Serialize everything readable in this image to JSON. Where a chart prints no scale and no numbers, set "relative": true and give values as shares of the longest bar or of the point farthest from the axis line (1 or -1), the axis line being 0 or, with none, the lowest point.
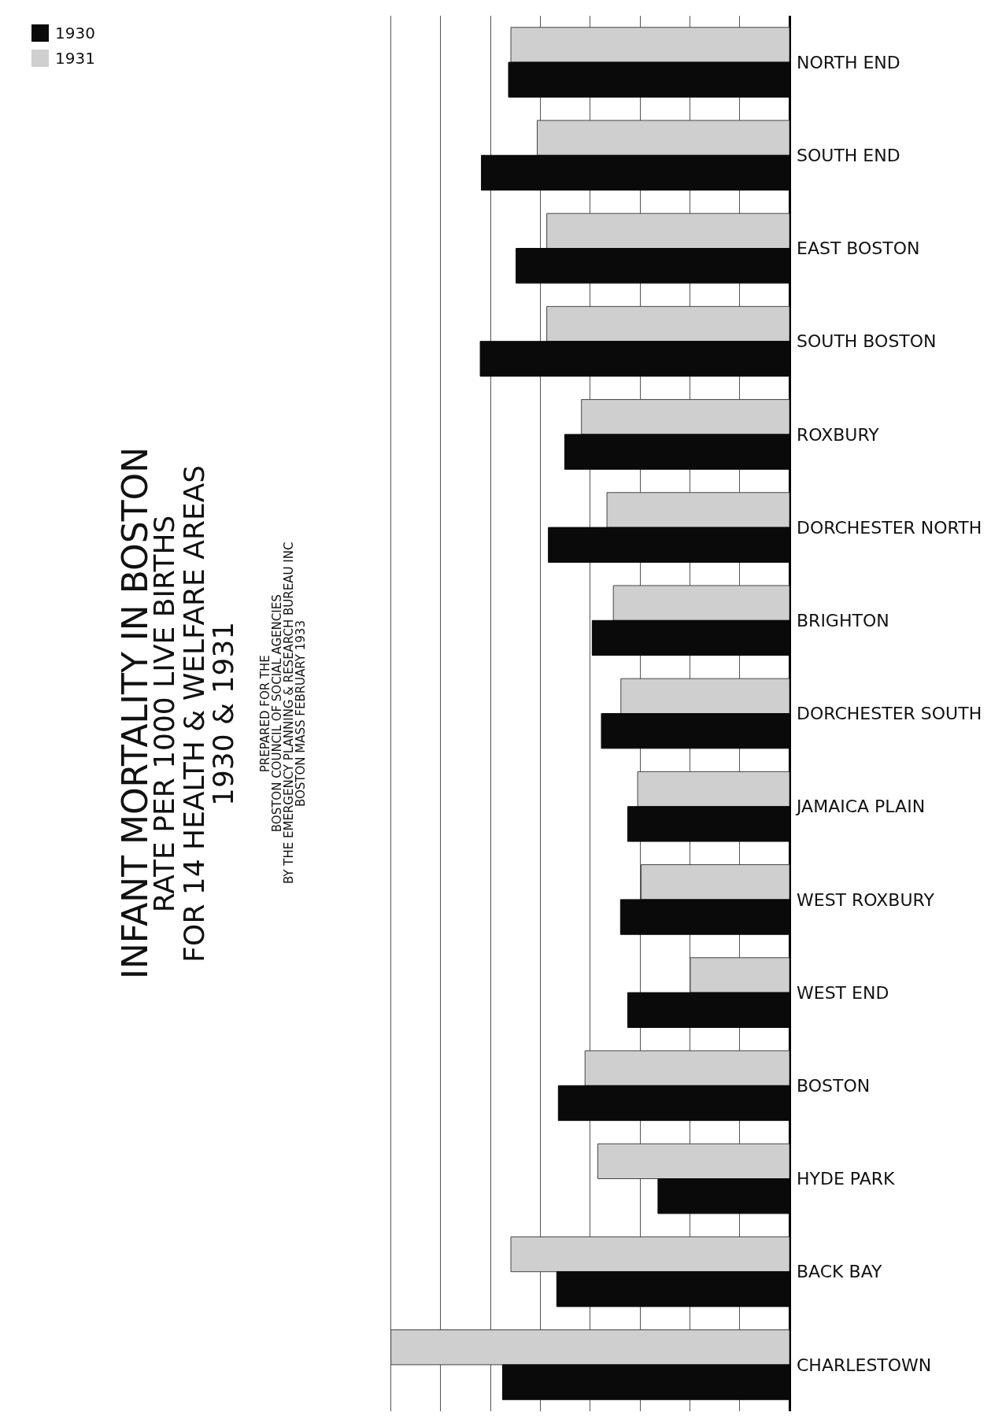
{
  "chart_data": {
    "type": "bar",
    "orientation": "horizontal",
    "relative": true,
    "title": "INFANT MORTALITY IN BOSTON\nRATE PER 1000 LIVE BIRTHS\nFOR 14 HEALTH & WELFARE AREAS\n1930 & 1931",
    "subtitle": "PREPARED FOR THE\nBOSTON COUNCIL OF SOCIAL AGENCIES\nBY THE EMERGENCY PLANNING & RESEARCH BUREAU INC\nBOSTON MASS FEBRUARY 1933",
    "categories": [
      "NORTH END",
      "SOUTH END",
      "EAST BOSTON",
      "SOUTH BOSTON",
      "ROXBURY",
      "DORCHESTER NORTH",
      "BRIGHTON",
      "DORCHESTER SOUTH",
      "JAMAICA PLAIN",
      "WEST ROXBURY",
      "WEST END",
      "BOSTON",
      "HYDE PARK",
      "BACK BAY",
      "CHARLESTOWN"
    ],
    "series": [
      {
        "name": "1931",
        "color": "#cfcfcf",
        "values": [
          0.699,
          0.633,
          0.609,
          0.609,
          0.522,
          0.458,
          0.442,
          0.423,
          0.381,
          0.372,
          0.249,
          0.513,
          0.481,
          0.699,
          1
        ]
      },
      {
        "name": "1930",
        "color": "#0a0a0a",
        "values": [
          0.705,
          0.773,
          0.686,
          0.776,
          0.564,
          0.605,
          0.495,
          0.472,
          0.406,
          0.424,
          0.406,
          0.58,
          0.33,
          0.584,
          0.72
        ]
      }
    ],
    "grid": "x",
    "legend": "top left"
  }
}
